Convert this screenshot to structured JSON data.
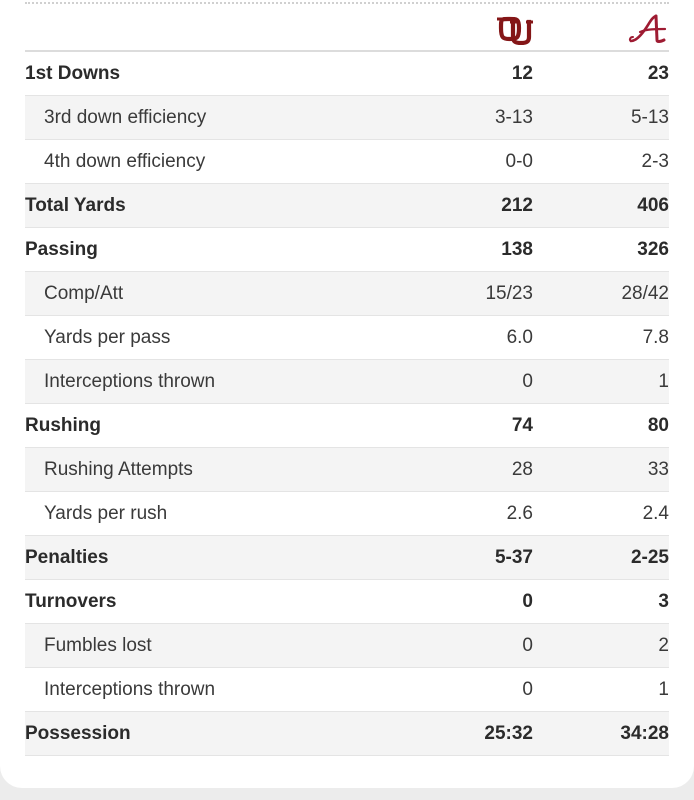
{
  "teams": {
    "home": {
      "name_icon": "ou-logo-icon",
      "color": "#841617"
    },
    "away": {
      "name_icon": "alabama-logo-icon",
      "color": "#9e1b32"
    }
  },
  "colors": {
    "row_alt": "#f4f4f4",
    "divider": "#e4e4e4",
    "text": "#2b2b2b"
  },
  "rows": [
    {
      "label": "1st Downs",
      "type": "main",
      "home": "12",
      "away": "23"
    },
    {
      "label": "3rd down efficiency",
      "type": "sub",
      "home": "3-13",
      "away": "5-13"
    },
    {
      "label": "4th down efficiency",
      "type": "sub",
      "home": "0-0",
      "away": "2-3"
    },
    {
      "label": "Total Yards",
      "type": "main",
      "home": "212",
      "away": "406"
    },
    {
      "label": "Passing",
      "type": "main",
      "home": "138",
      "away": "326"
    },
    {
      "label": "Comp/Att",
      "type": "sub",
      "home": "15/23",
      "away": "28/42"
    },
    {
      "label": "Yards per pass",
      "type": "sub",
      "home": "6.0",
      "away": "7.8"
    },
    {
      "label": "Interceptions thrown",
      "type": "sub",
      "home": "0",
      "away": "1"
    },
    {
      "label": "Rushing",
      "type": "main",
      "home": "74",
      "away": "80"
    },
    {
      "label": "Rushing Attempts",
      "type": "sub",
      "home": "28",
      "away": "33"
    },
    {
      "label": "Yards per rush",
      "type": "sub",
      "home": "2.6",
      "away": "2.4"
    },
    {
      "label": "Penalties",
      "type": "main",
      "home": "5-37",
      "away": "2-25"
    },
    {
      "label": "Turnovers",
      "type": "main",
      "home": "0",
      "away": "3"
    },
    {
      "label": "Fumbles lost",
      "type": "sub",
      "home": "0",
      "away": "2"
    },
    {
      "label": "Interceptions thrown",
      "type": "sub",
      "home": "0",
      "away": "1"
    },
    {
      "label": "Possession",
      "type": "main",
      "home": "25:32",
      "away": "34:28"
    }
  ]
}
